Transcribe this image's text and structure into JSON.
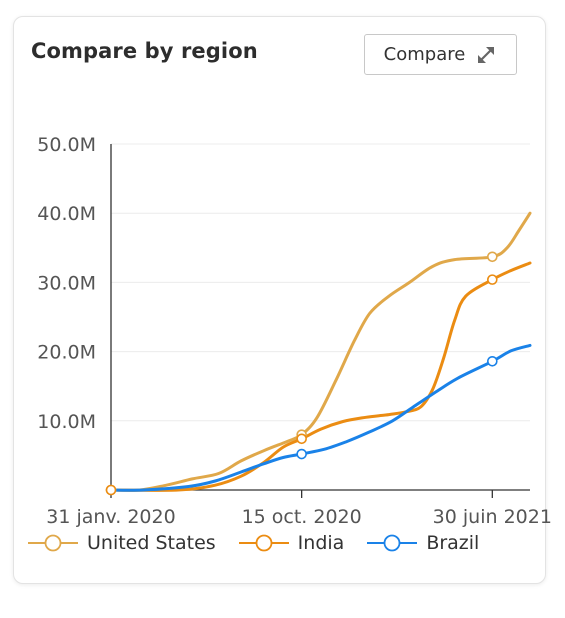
{
  "card": {
    "title": "Compare by region",
    "compare_label": "Compare",
    "compare_icon": "expand-arrows-icon"
  },
  "chart_data": {
    "type": "line",
    "title": "Compare by region",
    "xlabel": "",
    "ylabel": "",
    "x_ticks": [
      {
        "date": "2020-01-31",
        "label": "31 janv. 2020"
      },
      {
        "date": "2020-10-15",
        "label": "15 oct. 2020"
      },
      {
        "date": "2021-06-30",
        "label": "30 juin 2021"
      }
    ],
    "x_range": [
      "2020-01-31",
      "2021-08-20"
    ],
    "y_ticks": [
      {
        "value": 10000000,
        "label": "10.0M"
      },
      {
        "value": 20000000,
        "label": "20.0M"
      },
      {
        "value": 30000000,
        "label": "30.0M"
      },
      {
        "value": 40000000,
        "label": "40.0M"
      },
      {
        "value": 50000000,
        "label": "50.0M"
      }
    ],
    "ylim": [
      0,
      50000000
    ],
    "grid": true,
    "legend_position": "bottom",
    "series": [
      {
        "name": "United States",
        "color": "#E0A84A",
        "points": [
          {
            "date": "2020-01-31",
            "value": 0
          },
          {
            "date": "2020-03-10",
            "value": 0
          },
          {
            "date": "2020-04-15",
            "value": 700000
          },
          {
            "date": "2020-05-20",
            "value": 1600000
          },
          {
            "date": "2020-06-25",
            "value": 2400000
          },
          {
            "date": "2020-07-25",
            "value": 4200000
          },
          {
            "date": "2020-08-25",
            "value": 5700000
          },
          {
            "date": "2020-09-25",
            "value": 7000000
          },
          {
            "date": "2020-10-15",
            "value": 8000000
          },
          {
            "date": "2020-11-05",
            "value": 10500000
          },
          {
            "date": "2020-12-01",
            "value": 16000000
          },
          {
            "date": "2020-12-25",
            "value": 21500000
          },
          {
            "date": "2021-01-15",
            "value": 25500000
          },
          {
            "date": "2021-02-10",
            "value": 28000000
          },
          {
            "date": "2021-03-10",
            "value": 30000000
          },
          {
            "date": "2021-04-10",
            "value": 32300000
          },
          {
            "date": "2021-05-10",
            "value": 33300000
          },
          {
            "date": "2021-06-30",
            "value": 33700000
          },
          {
            "date": "2021-07-20",
            "value": 35000000
          },
          {
            "date": "2021-08-05",
            "value": 37500000
          },
          {
            "date": "2021-08-20",
            "value": 40000000
          }
        ],
        "marker_dates": [
          "2020-01-31",
          "2020-10-15",
          "2021-06-30"
        ]
      },
      {
        "name": "India",
        "color": "#EB8C12",
        "points": [
          {
            "date": "2020-01-31",
            "value": 0
          },
          {
            "date": "2020-05-01",
            "value": 0
          },
          {
            "date": "2020-06-20",
            "value": 700000
          },
          {
            "date": "2020-07-25",
            "value": 2000000
          },
          {
            "date": "2020-08-25",
            "value": 4000000
          },
          {
            "date": "2020-09-20",
            "value": 6200000
          },
          {
            "date": "2020-10-15",
            "value": 7400000
          },
          {
            "date": "2020-11-10",
            "value": 8800000
          },
          {
            "date": "2020-12-10",
            "value": 9900000
          },
          {
            "date": "2021-01-10",
            "value": 10500000
          },
          {
            "date": "2021-02-10",
            "value": 10900000
          },
          {
            "date": "2021-03-05",
            "value": 11300000
          },
          {
            "date": "2021-03-25",
            "value": 12000000
          },
          {
            "date": "2021-04-10",
            "value": 14500000
          },
          {
            "date": "2021-04-25",
            "value": 19000000
          },
          {
            "date": "2021-05-10",
            "value": 24500000
          },
          {
            "date": "2021-05-25",
            "value": 28000000
          },
          {
            "date": "2021-06-30",
            "value": 30400000
          },
          {
            "date": "2021-07-25",
            "value": 31700000
          },
          {
            "date": "2021-08-20",
            "value": 32800000
          }
        ],
        "marker_dates": [
          "2020-01-31",
          "2020-10-15",
          "2021-06-30"
        ]
      },
      {
        "name": "Brazil",
        "color": "#1A82E8",
        "points": [
          {
            "date": "2020-01-31",
            "value": 0
          },
          {
            "date": "2020-03-15",
            "value": 0
          },
          {
            "date": "2020-05-15",
            "value": 500000
          },
          {
            "date": "2020-06-20",
            "value": 1300000
          },
          {
            "date": "2020-07-25",
            "value": 2600000
          },
          {
            "date": "2020-08-25",
            "value": 3800000
          },
          {
            "date": "2020-09-20",
            "value": 4700000
          },
          {
            "date": "2020-10-15",
            "value": 5200000
          },
          {
            "date": "2020-11-15",
            "value": 5900000
          },
          {
            "date": "2020-12-15",
            "value": 7000000
          },
          {
            "date": "2021-01-15",
            "value": 8400000
          },
          {
            "date": "2021-02-15",
            "value": 10000000
          },
          {
            "date": "2021-03-15",
            "value": 12000000
          },
          {
            "date": "2021-04-15",
            "value": 14200000
          },
          {
            "date": "2021-05-15",
            "value": 16200000
          },
          {
            "date": "2021-06-30",
            "value": 18600000
          },
          {
            "date": "2021-07-25",
            "value": 20100000
          },
          {
            "date": "2021-08-20",
            "value": 20900000
          }
        ],
        "marker_dates": [
          "2020-10-15",
          "2021-06-30"
        ]
      }
    ]
  }
}
